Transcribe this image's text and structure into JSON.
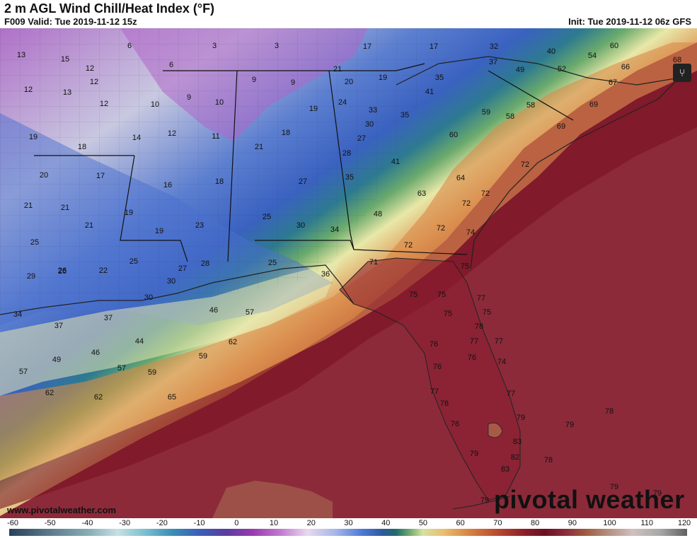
{
  "header": {
    "title": "2 m AGL Wind Chill/Heat Index (°F)",
    "valid": "F009 Valid: Tue 2019-11-12 15z",
    "init": "Init: Tue 2019-11-12 06z GFS"
  },
  "footer": {
    "url": "www.pivotalweather.com",
    "logo": "pivotal weather"
  },
  "share_icon": "share-icon",
  "colorbar": {
    "labels": [
      "-60",
      "-50",
      "-40",
      "-30",
      "-20",
      "-10",
      "0",
      "10",
      "20",
      "30",
      "40",
      "50",
      "60",
      "70",
      "80",
      "90",
      "100",
      "110",
      "120"
    ]
  },
  "map_values": [
    {
      "v": "13"
    },
    {
      "v": "15"
    },
    {
      "v": "6"
    },
    {
      "v": "3"
    },
    {
      "v": "3"
    },
    {
      "v": "17"
    },
    {
      "v": "17"
    },
    {
      "v": "32"
    },
    {
      "v": "40"
    },
    {
      "v": "54"
    },
    {
      "v": "60"
    },
    {
      "v": "68"
    },
    {
      "v": "12"
    },
    {
      "v": "12"
    },
    {
      "v": "6"
    },
    {
      "v": "37"
    },
    {
      "v": "49"
    },
    {
      "v": "52"
    },
    {
      "v": "66"
    },
    {
      "v": "12"
    },
    {
      "v": "13"
    },
    {
      "v": "9"
    },
    {
      "v": "9"
    },
    {
      "v": "21"
    },
    {
      "v": "20"
    },
    {
      "v": "19"
    },
    {
      "v": "35"
    },
    {
      "v": "67"
    },
    {
      "v": "12"
    },
    {
      "v": "10"
    },
    {
      "v": "9"
    },
    {
      "v": "10"
    },
    {
      "v": "24"
    },
    {
      "v": "41"
    },
    {
      "v": "58"
    },
    {
      "v": "69"
    },
    {
      "v": "19"
    },
    {
      "v": "33"
    },
    {
      "v": "35"
    },
    {
      "v": "59"
    },
    {
      "v": "58"
    },
    {
      "v": "19"
    },
    {
      "v": "14"
    },
    {
      "v": "12"
    },
    {
      "v": "11"
    },
    {
      "v": "18"
    },
    {
      "v": "30"
    },
    {
      "v": "69"
    },
    {
      "v": "60"
    },
    {
      "v": "18"
    },
    {
      "v": "21"
    },
    {
      "v": "27"
    },
    {
      "v": "28"
    },
    {
      "v": "20"
    },
    {
      "v": "17"
    },
    {
      "v": "41"
    },
    {
      "v": "72"
    },
    {
      "v": "16"
    },
    {
      "v": "18"
    },
    {
      "v": "27"
    },
    {
      "v": "35"
    },
    {
      "v": "64"
    },
    {
      "v": "63"
    },
    {
      "v": "72"
    },
    {
      "v": "21"
    },
    {
      "v": "21"
    },
    {
      "v": "19"
    },
    {
      "v": "72"
    },
    {
      "v": "48"
    },
    {
      "v": "21"
    },
    {
      "v": "19"
    },
    {
      "v": "23"
    },
    {
      "v": "25"
    },
    {
      "v": "30"
    },
    {
      "v": "34"
    },
    {
      "v": "72"
    },
    {
      "v": "74"
    },
    {
      "v": "25"
    },
    {
      "v": "72"
    },
    {
      "v": "26"
    },
    {
      "v": "26"
    },
    {
      "v": "22"
    },
    {
      "v": "25"
    },
    {
      "v": "27"
    },
    {
      "v": "28"
    },
    {
      "v": "25"
    },
    {
      "v": "71"
    },
    {
      "v": "75"
    },
    {
      "v": "29"
    },
    {
      "v": "30"
    },
    {
      "v": "36"
    },
    {
      "v": "30"
    },
    {
      "v": "75"
    },
    {
      "v": "75"
    },
    {
      "v": "77"
    },
    {
      "v": "34"
    },
    {
      "v": "37"
    },
    {
      "v": "46"
    },
    {
      "v": "57"
    },
    {
      "v": "75"
    },
    {
      "v": "75"
    },
    {
      "v": "37"
    },
    {
      "v": "78"
    },
    {
      "v": "44"
    },
    {
      "v": "62"
    },
    {
      "v": "76"
    },
    {
      "v": "77"
    },
    {
      "v": "77"
    },
    {
      "v": "46"
    },
    {
      "v": "49"
    },
    {
      "v": "59"
    },
    {
      "v": "76"
    },
    {
      "v": "74"
    },
    {
      "v": "57"
    },
    {
      "v": "57"
    },
    {
      "v": "59"
    },
    {
      "v": "76"
    },
    {
      "v": "62"
    },
    {
      "v": "62"
    },
    {
      "v": "65"
    },
    {
      "v": "77"
    },
    {
      "v": "77"
    },
    {
      "v": "78"
    },
    {
      "v": "78"
    },
    {
      "v": "79"
    },
    {
      "v": "79"
    },
    {
      "v": "76"
    },
    {
      "v": "83"
    },
    {
      "v": "79"
    },
    {
      "v": "82"
    },
    {
      "v": "78"
    },
    {
      "v": "83"
    },
    {
      "v": "79"
    },
    {
      "v": "79"
    },
    {
      "v": "79"
    }
  ]
}
